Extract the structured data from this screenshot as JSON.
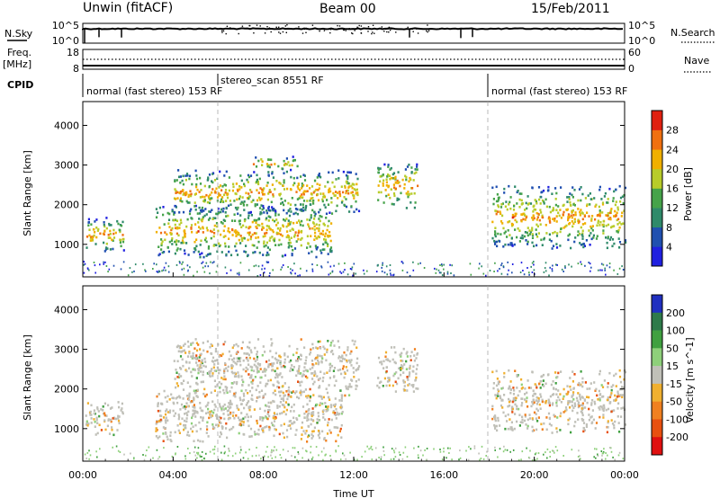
{
  "header": {
    "station": "Unwin (fitACF)",
    "beam": "Beam 00",
    "date": "15/Feb/2011"
  },
  "strip_labels": {
    "nsky": "N.Sky",
    "nsky_top": "10^5",
    "nsky_bottom": "10^0",
    "nsearch": "N.Search",
    "nsearch_top": "10^5",
    "nsearch_bottom": "10^0",
    "freq_label_1": "Freq.",
    "freq_label_2": "[MHz]",
    "freq_top": "18",
    "freq_bottom": "8",
    "nave_label": "Nave",
    "nave_top": "60",
    "nave_bottom": "0",
    "cpid": "CPID"
  },
  "cpid_segments": [
    {
      "label": "normal (fast stereo) 153 RF",
      "start_hour": 0
    },
    {
      "label": "stereo_scan 8551 RF",
      "start_hour": 6
    },
    {
      "label": "normal (fast stereo) 153 RF",
      "start_hour": 18
    }
  ],
  "chart_data": [
    {
      "type": "heatmap",
      "title": "Power",
      "ylabel": "Slant Range [km]",
      "xlabel": "Time UT",
      "xlim": [
        0,
        24
      ],
      "ylim": [
        180,
        4600
      ],
      "yticks": [
        1000,
        2000,
        3000,
        4000
      ],
      "colorbar": {
        "label": "Power [dB]",
        "ticks": [
          4,
          8,
          12,
          16,
          20,
          24,
          28
        ],
        "range": [
          0,
          32
        ]
      },
      "bands": [
        {
          "t0": 0.1,
          "t1": 1.8,
          "r0": 850,
          "r1": 1700
        },
        {
          "t0": 3.2,
          "t1": 11.0,
          "r0": 700,
          "r1": 2000
        },
        {
          "t0": 4.0,
          "t1": 12.2,
          "r0": 1800,
          "r1": 2900
        },
        {
          "t0": 7.5,
          "t1": 9.5,
          "r0": 2900,
          "r1": 3250
        },
        {
          "t0": 13.0,
          "t1": 14.8,
          "r0": 1900,
          "r1": 3100
        },
        {
          "t0": 18.1,
          "t1": 24.0,
          "r0": 900,
          "r1": 2500
        }
      ]
    },
    {
      "type": "heatmap",
      "title": "Velocity",
      "ylabel": "Slant Range [km]",
      "xlabel": "Time UT",
      "xlim": [
        0,
        24
      ],
      "ylim": [
        180,
        4600
      ],
      "yticks": [
        1000,
        2000,
        3000,
        4000
      ],
      "xticks": [
        "00:00",
        "04:00",
        "08:00",
        "12:00",
        "16:00",
        "20:00",
        "00:00"
      ],
      "colorbar": {
        "label": "Velocity [m s^-1]",
        "ticks": [
          200,
          100,
          50,
          15,
          -15,
          -50,
          -100,
          -200
        ]
      },
      "bands": [
        {
          "t0": 0.1,
          "t1": 1.8,
          "r0": 850,
          "r1": 1700
        },
        {
          "t0": 3.2,
          "t1": 11.5,
          "r0": 700,
          "r1": 2000
        },
        {
          "t0": 4.0,
          "t1": 12.2,
          "r0": 1800,
          "r1": 3300
        },
        {
          "t0": 13.0,
          "t1": 14.8,
          "r0": 1900,
          "r1": 3100
        },
        {
          "t0": 18.1,
          "t1": 24.0,
          "r0": 900,
          "r1": 2500
        }
      ]
    }
  ],
  "colors": {
    "power": [
      "#2020e0",
      "#2050b0",
      "#2f8a6a",
      "#46a34a",
      "#b8cc2a",
      "#f0b000",
      "#f07010",
      "#e02010"
    ],
    "velocity": [
      "#2030c0",
      "#2e7a4a",
      "#40a040",
      "#8ed07a",
      "#c0c0b8",
      "#f0b030",
      "#f08020",
      "#e85010",
      "#e01010"
    ]
  }
}
